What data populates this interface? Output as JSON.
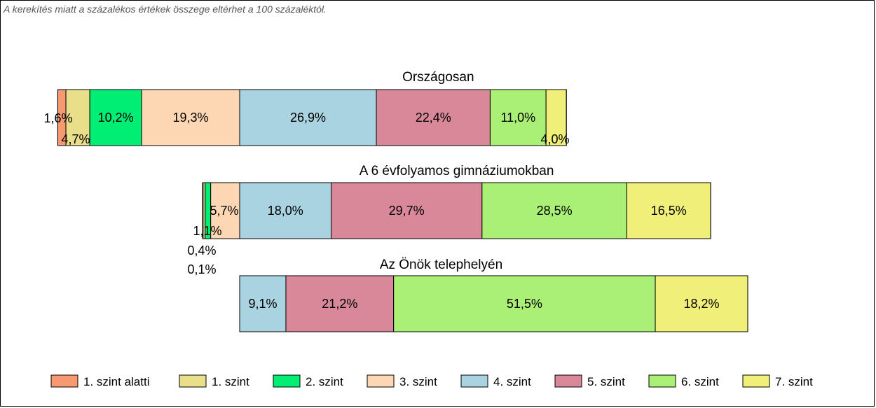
{
  "note": "A kerekítés miatt a  százalékos értékek összege eltérhet a 100 százaléktól.",
  "chart_data": {
    "type": "bar",
    "orientation": "horizontal-stacked-100",
    "legend_position": "bottom",
    "categories": [
      "1. szint alatti",
      "1. szint",
      "2. szint",
      "3. szint",
      "4. szint",
      "5. szint",
      "6. szint",
      "7. szint"
    ],
    "colors": [
      "#f79a72",
      "#e9df8a",
      "#00ee73",
      "#fdd6b4",
      "#aad3e2",
      "#d9889a",
      "#aaf077",
      "#efef7a"
    ],
    "groups": [
      {
        "title": "Országosan",
        "values": [
          1.6,
          4.7,
          10.2,
          19.3,
          26.9,
          22.4,
          11.0,
          4.0
        ],
        "labels": [
          "1,6%",
          "4,7%",
          "10,2%",
          "19,3%",
          "26,9%",
          "22,4%",
          "11,0%",
          "4,0%"
        ]
      },
      {
        "title": "A 6 évfolyamos gimnáziumokban",
        "values": [
          0.1,
          0.4,
          1.1,
          5.7,
          18.0,
          29.7,
          28.5,
          16.5
        ],
        "labels": [
          "0,1%",
          "0,4%",
          "1,1%",
          "5,7%",
          "18,0%",
          "29,7%",
          "28,5%",
          "16,5%"
        ]
      },
      {
        "title": "Az Önök telephelyén",
        "values": [
          0,
          0,
          0,
          0,
          9.1,
          21.2,
          51.5,
          18.2
        ],
        "labels": [
          "",
          "",
          "",
          "",
          "9,1%",
          "21,2%",
          "51,5%",
          "18,2%"
        ]
      }
    ]
  }
}
